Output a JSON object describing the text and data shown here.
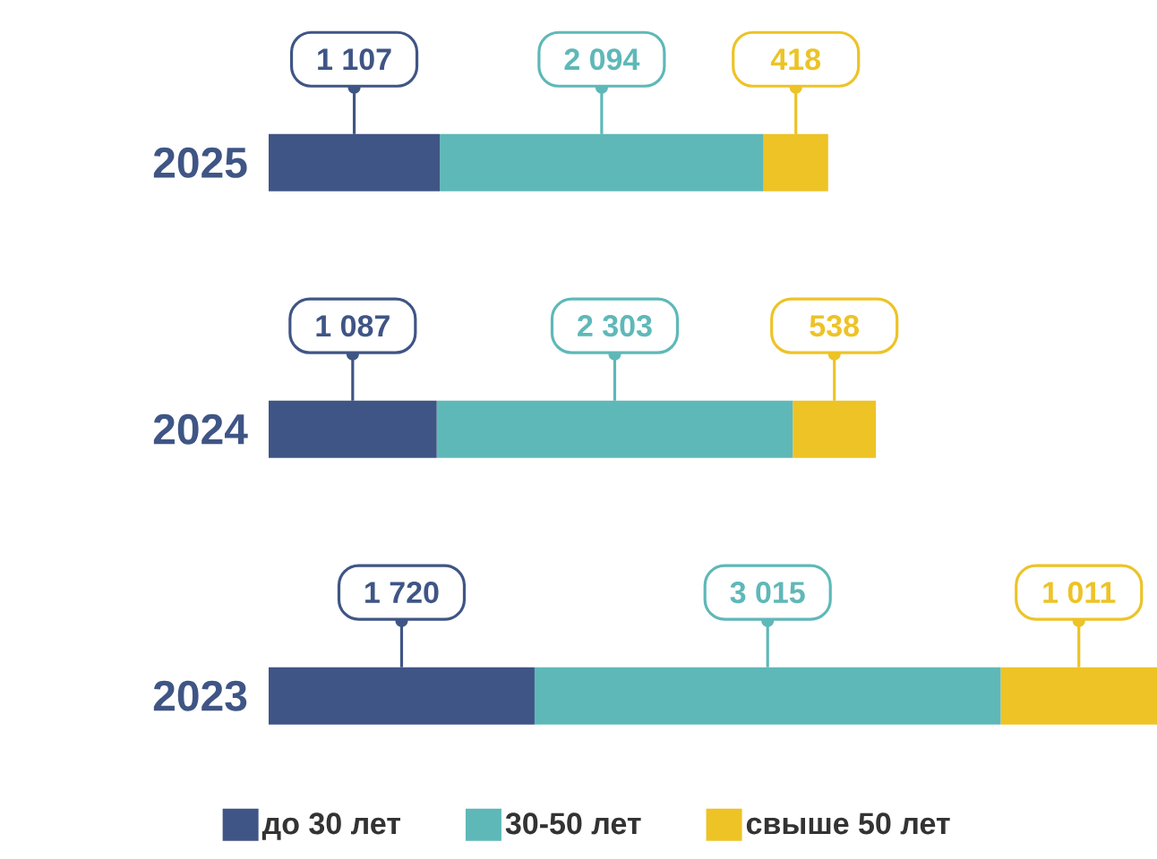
{
  "chart_data": {
    "type": "bar",
    "orientation": "horizontal",
    "stacked": true,
    "legend": "bottom",
    "categories": [
      "2025",
      "2024",
      "2023"
    ],
    "series": [
      {
        "name": "до 30 лет",
        "color": "#3f5585",
        "values": [
          1107,
          1087,
          1720
        ],
        "value_labels": [
          "1 107",
          "1 087",
          "1 720"
        ]
      },
      {
        "name": "30-50 лет",
        "color": "#5fb8b8",
        "values": [
          2094,
          2303,
          3015
        ],
        "value_labels": [
          "2 094",
          "2 303",
          "3 015"
        ]
      },
      {
        "name": "свыше 50 лет",
        "color": "#edc326",
        "values": [
          418,
          538,
          1011
        ],
        "value_labels": [
          "418",
          "538",
          "1 011"
        ]
      }
    ]
  }
}
